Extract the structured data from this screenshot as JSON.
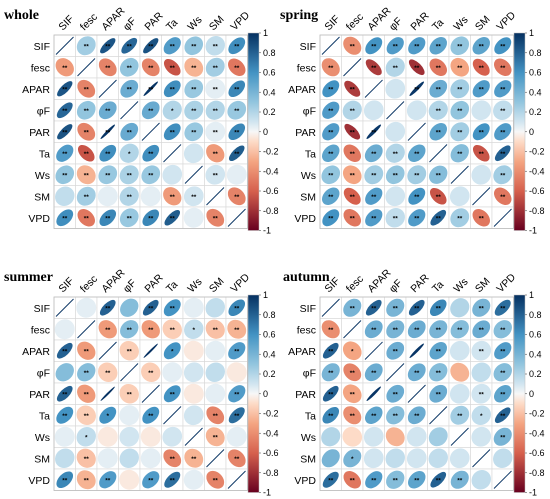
{
  "chart_data": [
    {
      "type": "heatmap",
      "title": "whole",
      "variables": [
        "SIF",
        "fesc",
        "APAR",
        "φF",
        "PAR",
        "Ta",
        "Ws",
        "SM",
        "VPD"
      ],
      "colorbar": {
        "range": [
          -1,
          1
        ],
        "ticks": [
          "1",
          "0.8",
          "0.6",
          "0.4",
          "0.2",
          "0",
          "-0.2",
          "-0.4",
          "-0.6",
          "-0.8",
          "-1"
        ]
      },
      "values": [
        [
          1.0,
          0.25,
          0.85,
          0.78,
          0.86,
          0.55,
          0.3,
          0.15,
          0.62
        ],
        [
          -0.35,
          1.0,
          -0.45,
          0.3,
          -0.45,
          -0.65,
          -0.25,
          0.25,
          -0.5
        ],
        [
          0.85,
          -0.45,
          1.0,
          0.45,
          0.98,
          0.62,
          0.28,
          0.05,
          0.65
        ],
        [
          0.78,
          0.3,
          0.45,
          1.0,
          0.46,
          0.2,
          0.22,
          0.2,
          0.28
        ],
        [
          0.86,
          -0.45,
          0.98,
          0.46,
          1.0,
          0.62,
          0.28,
          0.05,
          0.65
        ],
        [
          0.55,
          -0.65,
          0.62,
          0.2,
          0.62,
          1.0,
          0.1,
          -0.35,
          0.82
        ],
        [
          0.3,
          -0.25,
          0.28,
          0.22,
          0.28,
          0.1,
          1.0,
          0.1,
          0.05
        ],
        [
          0.15,
          0.25,
          0.05,
          0.2,
          0.05,
          -0.35,
          0.1,
          1.0,
          -0.45
        ],
        [
          0.62,
          -0.5,
          0.65,
          0.28,
          0.65,
          0.82,
          0.05,
          -0.45,
          1.0
        ]
      ],
      "significance": [
        [
          "",
          "**",
          "**",
          "**",
          "**",
          "**",
          "**",
          "**",
          "**"
        ],
        [
          "**",
          "",
          "**",
          "**",
          "**",
          "**",
          "**",
          "**",
          "**"
        ],
        [
          "**",
          "**",
          "",
          "**",
          "**",
          "**",
          "**",
          "**",
          "**"
        ],
        [
          "**",
          "**",
          "**",
          "",
          "**",
          "*",
          "**",
          "**",
          "**"
        ],
        [
          "**",
          "**",
          "**",
          "**",
          "",
          "**",
          "**",
          "**",
          "**"
        ],
        [
          "**",
          "**",
          "**",
          "*",
          "**",
          "",
          "",
          "**",
          "**"
        ],
        [
          "**",
          "**",
          "**",
          "**",
          "**",
          "",
          "",
          "**",
          ""
        ],
        [
          "",
          "**",
          "",
          "**",
          "",
          "**",
          "**",
          "",
          "**"
        ],
        [
          "**",
          "**",
          "**",
          "**",
          "**",
          "**",
          "",
          "**",
          ""
        ]
      ]
    },
    {
      "type": "heatmap",
      "title": "spring",
      "variables": [
        "SIF",
        "fesc",
        "APAR",
        "φF",
        "PAR",
        "Ta",
        "Ws",
        "SM",
        "VPD"
      ],
      "colorbar": {
        "range": [
          -1,
          1
        ],
        "ticks": [
          "1",
          "0.8",
          "0.6",
          "0.4",
          "0.2",
          "0",
          "-0.2",
          "-0.4",
          "-0.6",
          "-0.8",
          "-1"
        ]
      },
      "values": [
        [
          1.0,
          -0.4,
          0.6,
          0.55,
          0.55,
          0.5,
          0.3,
          0.5,
          0.6
        ],
        [
          -0.4,
          1.0,
          -0.75,
          0.2,
          -0.8,
          -0.5,
          -0.3,
          -0.6,
          -0.5
        ],
        [
          0.6,
          -0.75,
          1.0,
          0.1,
          0.97,
          0.45,
          0.25,
          0.55,
          0.55
        ],
        [
          0.55,
          0.2,
          0.1,
          1.0,
          0.1,
          0.2,
          0.3,
          0.1,
          0.15
        ],
        [
          0.55,
          -0.8,
          0.97,
          0.1,
          1.0,
          0.5,
          0.25,
          0.6,
          0.55
        ],
        [
          0.5,
          -0.5,
          0.45,
          0.2,
          0.5,
          1.0,
          0.35,
          -0.65,
          0.8
        ],
        [
          0.3,
          -0.3,
          0.25,
          0.3,
          0.25,
          0.35,
          1.0,
          0.1,
          0.25
        ],
        [
          0.5,
          -0.6,
          0.55,
          0.1,
          0.6,
          -0.65,
          0.1,
          1.0,
          -0.5
        ],
        [
          0.6,
          -0.5,
          0.55,
          0.15,
          0.55,
          0.8,
          0.25,
          -0.5,
          1.0
        ]
      ],
      "significance": [
        [
          "",
          "**",
          "**",
          "**",
          "**",
          "**",
          "**",
          "**",
          "**"
        ],
        [
          "**",
          "",
          "**",
          "**",
          "**",
          "**",
          "**",
          "**",
          "**"
        ],
        [
          "**",
          "**",
          "",
          "",
          "**",
          "**",
          "**",
          "**",
          "**"
        ],
        [
          "**",
          "**",
          "",
          "",
          "",
          "**",
          "**",
          "",
          "**"
        ],
        [
          "**",
          "**",
          "**",
          "",
          "",
          "**",
          "**",
          "**",
          "**"
        ],
        [
          "**",
          "**",
          "**",
          "**",
          "**",
          "",
          "**",
          "**",
          "**"
        ],
        [
          "**",
          "**",
          "**",
          "**",
          "**",
          "**",
          "",
          "",
          "**"
        ],
        [
          "**",
          "**",
          "**",
          "",
          "**",
          "**",
          "",
          "",
          "**"
        ],
        [
          "**",
          "**",
          "**",
          "**",
          "**",
          "**",
          "**",
          "**",
          ""
        ]
      ]
    },
    {
      "type": "heatmap",
      "title": "summer",
      "variables": [
        "SIF",
        "fesc",
        "APAR",
        "φF",
        "PAR",
        "Ta",
        "Ws",
        "SM",
        "VPD"
      ],
      "colorbar": {
        "range": [
          -1,
          1
        ],
        "ticks": [
          "1",
          "0.8",
          "0.6",
          "0.4",
          "0.2",
          "0",
          "-0.2",
          "-0.4",
          "-0.6",
          "-0.8",
          "-1"
        ]
      },
      "values": [
        [
          1.0,
          0.05,
          0.8,
          0.35,
          0.8,
          0.6,
          0.05,
          0.15,
          0.65
        ],
        [
          0.05,
          1.0,
          -0.35,
          0.35,
          -0.35,
          -0.15,
          0.15,
          -0.2,
          -0.25
        ],
        [
          0.8,
          -0.35,
          1.0,
          -0.15,
          0.99,
          0.6,
          -0.05,
          0.05,
          0.55
        ],
        [
          0.35,
          0.35,
          -0.15,
          1.0,
          -0.15,
          0.05,
          0.1,
          0.15,
          -0.05
        ],
        [
          0.8,
          -0.35,
          0.99,
          -0.15,
          1.0,
          0.6,
          -0.05,
          0.05,
          0.55
        ],
        [
          0.6,
          -0.15,
          0.6,
          0.05,
          0.6,
          1.0,
          0.1,
          -0.45,
          0.75
        ],
        [
          0.05,
          0.15,
          -0.05,
          0.1,
          -0.05,
          0.1,
          1.0,
          -0.25,
          0.05
        ],
        [
          0.15,
          -0.2,
          0.05,
          0.15,
          0.05,
          -0.45,
          -0.25,
          1.0,
          -0.45
        ],
        [
          0.65,
          -0.25,
          0.55,
          -0.05,
          0.55,
          0.75,
          0.05,
          -0.45,
          1.0
        ]
      ],
      "significance": [
        [
          "",
          "",
          "**",
          "",
          "**",
          "**",
          "",
          "",
          "**"
        ],
        [
          "",
          "",
          "**",
          "**",
          "**",
          "**",
          "*",
          "**",
          "**"
        ],
        [
          "**",
          "**",
          "",
          "**",
          "",
          "*",
          "",
          "",
          "**"
        ],
        [
          "",
          "**",
          "**",
          "",
          "**",
          "",
          "",
          "",
          ""
        ],
        [
          "**",
          "**",
          "",
          "**",
          "",
          "**",
          "",
          "",
          "**"
        ],
        [
          "**",
          "**",
          "*",
          "",
          "**",
          "",
          "",
          "**",
          "**"
        ],
        [
          "",
          "*",
          "",
          "",
          "",
          "",
          "",
          "**",
          ""
        ],
        [
          "",
          "**",
          "",
          "",
          "",
          "**",
          "**",
          "",
          "**"
        ],
        [
          "**",
          "**",
          "**",
          "",
          "**",
          "**",
          "",
          "**",
          ""
        ]
      ]
    },
    {
      "type": "heatmap",
      "title": "autumn",
      "variables": [
        "SIF",
        "fesc",
        "APAR",
        "φF",
        "PAR",
        "Ta",
        "Ws",
        "SM",
        "VPD"
      ],
      "colorbar": {
        "range": [
          -1,
          1
        ],
        "ticks": [
          "1",
          "0.8",
          "0.6",
          "0.4",
          "0.2",
          "0",
          "-0.2",
          "-0.4",
          "-0.6",
          "-0.8",
          "-1"
        ]
      },
      "values": [
        [
          1.0,
          0.4,
          0.8,
          0.4,
          0.8,
          0.65,
          0.2,
          0.4,
          0.75
        ],
        [
          -0.4,
          1.0,
          0.45,
          0.4,
          0.45,
          0.4,
          0.35,
          0.45,
          0.35
        ],
        [
          0.8,
          -0.3,
          1.0,
          0.45,
          0.98,
          0.5,
          0.1,
          0.1,
          0.55
        ],
        [
          0.4,
          -0.45,
          0.45,
          1.0,
          0.45,
          0.35,
          -0.25,
          0.15,
          0.35
        ],
        [
          0.8,
          -0.3,
          0.98,
          0.45,
          1.0,
          0.45,
          0.1,
          0.1,
          0.5
        ],
        [
          0.65,
          -0.4,
          0.5,
          0.35,
          0.45,
          1.0,
          0.25,
          0.15,
          0.8
        ],
        [
          0.2,
          -0.1,
          0.1,
          -0.25,
          0.1,
          0.25,
          1.0,
          0.1,
          0.4
        ],
        [
          0.4,
          0.4,
          0.1,
          0.15,
          0.1,
          0.15,
          0.1,
          1.0,
          0.15
        ],
        [
          0.75,
          -0.5,
          0.55,
          0.35,
          0.5,
          0.8,
          0.4,
          0.15,
          1.0
        ]
      ],
      "significance": [
        [
          "",
          "**",
          "**",
          "**",
          "**",
          "**",
          "",
          "**",
          "**"
        ],
        [
          "**",
          "",
          "**",
          "**",
          "**",
          "**",
          "**",
          "**",
          "**"
        ],
        [
          "**",
          "*",
          "",
          "**",
          "",
          "**",
          "",
          "**",
          "**"
        ],
        [
          "**",
          "**",
          "**",
          "",
          "**",
          "**",
          "",
          "",
          "**"
        ],
        [
          "**",
          "**",
          "",
          "**",
          "",
          "**",
          "",
          "**",
          "**"
        ],
        [
          "**",
          "**",
          "**",
          "**",
          "**",
          "",
          "**",
          "*",
          "**"
        ],
        [
          "",
          "",
          "",
          "",
          "",
          "",
          "",
          "",
          "**"
        ],
        [
          "",
          "*",
          "",
          "",
          "",
          "",
          "",
          "",
          ""
        ],
        [
          "**",
          "**",
          "**",
          "**",
          "**",
          "**",
          "**",
          "",
          ""
        ]
      ]
    }
  ]
}
